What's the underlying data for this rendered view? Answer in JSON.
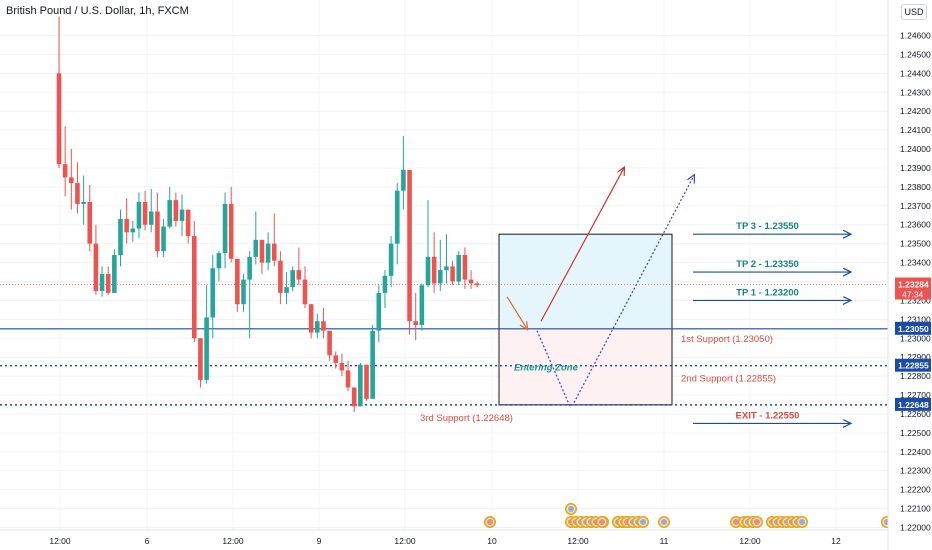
{
  "header": {
    "symbol": "British Pound / U.S. Dollar, 1h, FXCM",
    "currency": "USD"
  },
  "chart_data": {
    "type": "candlestick",
    "title": "British Pound / U.S. Dollar, 1h, FXCM",
    "ylim": [
      1.2197,
      1.2468
    ],
    "y_ticks": [
      "1.24600",
      "1.24500",
      "1.24400",
      "1.24300",
      "1.24200",
      "1.24100",
      "1.24000",
      "1.23900",
      "1.23800",
      "1.23700",
      "1.23600",
      "1.23500",
      "1.23400",
      "1.23300",
      "1.23200",
      "1.23100",
      "1.23000",
      "1.22900",
      "1.22800",
      "1.22700",
      "1.22600",
      "1.22500",
      "1.22400",
      "1.22300",
      "1.22200",
      "1.22100",
      "1.22000"
    ],
    "x_ticks": [
      "12:00",
      "6",
      "12:00",
      "9",
      "12:00",
      "10",
      "12:00",
      "11",
      "12:00",
      "12"
    ],
    "candles": [
      [
        1.244,
        1.247,
        1.239,
        1.2392
      ],
      [
        1.2392,
        1.2412,
        1.2375,
        1.2385
      ],
      [
        1.2385,
        1.24,
        1.2368,
        1.2382
      ],
      [
        1.2382,
        1.2393,
        1.2366,
        1.2371
      ],
      [
        1.2371,
        1.2386,
        1.236,
        1.2372
      ],
      [
        1.2372,
        1.2381,
        1.2346,
        1.235
      ],
      [
        1.235,
        1.236,
        1.2323,
        1.2325
      ],
      [
        1.2325,
        1.2338,
        1.2322,
        1.2334
      ],
      [
        1.2334,
        1.2338,
        1.2323,
        1.2324
      ],
      [
        1.2324,
        1.2347,
        1.2324,
        1.2344
      ],
      [
        1.2344,
        1.2368,
        1.2338,
        1.2363
      ],
      [
        1.2363,
        1.2374,
        1.235,
        1.2356
      ],
      [
        1.2356,
        1.2362,
        1.2351,
        1.2358
      ],
      [
        1.2358,
        1.2377,
        1.2353,
        1.2372
      ],
      [
        1.2372,
        1.2378,
        1.2357,
        1.236
      ],
      [
        1.236,
        1.2379,
        1.2356,
        1.2367
      ],
      [
        1.2367,
        1.2377,
        1.2343,
        1.2346
      ],
      [
        1.2346,
        1.2363,
        1.2343,
        1.2359
      ],
      [
        1.2359,
        1.238,
        1.2358,
        1.2373
      ],
      [
        1.2373,
        1.2377,
        1.2359,
        1.2362
      ],
      [
        1.2362,
        1.2376,
        1.2354,
        1.2368
      ],
      [
        1.2368,
        1.2368,
        1.235,
        1.2354
      ],
      [
        1.2354,
        1.2362,
        1.2298,
        1.23
      ],
      [
        1.23,
        1.23,
        1.2274,
        1.2278
      ],
      [
        1.2278,
        1.2328,
        1.2276,
        1.2311
      ],
      [
        1.2311,
        1.2344,
        1.23,
        1.2337
      ],
      [
        1.2337,
        1.2346,
        1.233,
        1.2345
      ],
      [
        1.2345,
        1.2377,
        1.2337,
        1.2371
      ],
      [
        1.2371,
        1.238,
        1.234,
        1.2342
      ],
      [
        1.2342,
        1.2342,
        1.2314,
        1.2318
      ],
      [
        1.2318,
        1.2334,
        1.2314,
        1.2331
      ],
      [
        1.2331,
        1.2346,
        1.23,
        1.2343
      ],
      [
        1.2343,
        1.2367,
        1.2339,
        1.2352
      ],
      [
        1.2352,
        1.2352,
        1.2334,
        1.234
      ],
      [
        1.234,
        1.2356,
        1.2336,
        1.235
      ],
      [
        1.235,
        1.2366,
        1.2338,
        1.2341
      ],
      [
        1.2341,
        1.2346,
        1.2318,
        1.2324
      ],
      [
        1.2324,
        1.2335,
        1.2318,
        1.2327
      ],
      [
        1.2327,
        1.2338,
        1.2325,
        1.2336
      ],
      [
        1.2336,
        1.2348,
        1.2328,
        1.2331
      ],
      [
        1.2331,
        1.2338,
        1.2316,
        1.2318
      ],
      [
        1.2318,
        1.2318,
        1.23,
        1.2303
      ],
      [
        1.2303,
        1.2313,
        1.23,
        1.2309
      ],
      [
        1.2309,
        1.2316,
        1.23,
        1.2304
      ],
      [
        1.2304,
        1.2304,
        1.2288,
        1.2291
      ],
      [
        1.2291,
        1.2293,
        1.2284,
        1.2287
      ],
      [
        1.2287,
        1.2292,
        1.228,
        1.2283
      ],
      [
        1.2283,
        1.2288,
        1.2272,
        1.2274
      ],
      [
        1.2274,
        1.2274,
        1.2261,
        1.2264
      ],
      [
        1.2264,
        1.2287,
        1.2264,
        1.2286
      ],
      [
        1.2286,
        1.2286,
        1.2267,
        1.2268
      ],
      [
        1.2268,
        1.2307,
        1.2268,
        1.2304
      ],
      [
        1.2304,
        1.2328,
        1.2298,
        1.2324
      ],
      [
        1.2324,
        1.2336,
        1.2316,
        1.2333
      ],
      [
        1.2333,
        1.2354,
        1.2327,
        1.235
      ],
      [
        1.235,
        1.2382,
        1.2339,
        1.2378
      ],
      [
        1.2378,
        1.2407,
        1.2368,
        1.2389
      ],
      [
        1.2389,
        1.2389,
        1.2302,
        1.2309
      ],
      [
        1.2309,
        1.2324,
        1.2299,
        1.2307
      ],
      [
        1.2307,
        1.2329,
        1.2304,
        1.2328
      ],
      [
        1.2328,
        1.2373,
        1.2327,
        1.2343
      ],
      [
        1.2343,
        1.2356,
        1.2324,
        1.2329
      ],
      [
        1.2329,
        1.2352,
        1.2325,
        1.2336
      ],
      [
        1.2336,
        1.2355,
        1.2329,
        1.2338
      ],
      [
        1.2338,
        1.2341,
        1.2328,
        1.233
      ],
      [
        1.233,
        1.2346,
        1.2328,
        1.2344
      ],
      [
        1.2344,
        1.2348,
        1.2326,
        1.2331
      ],
      [
        1.2331,
        1.2336,
        1.2326,
        1.2329
      ],
      [
        1.2329,
        1.233,
        1.2327,
        1.2328
      ]
    ],
    "levels": [
      {
        "name": "1st Support (1.23050)",
        "value": 1.2305,
        "style": "solid"
      },
      {
        "name": "2nd Support (1.22855)",
        "value": 1.22855,
        "style": "dotted"
      },
      {
        "name": "3rd Support (1.22648)",
        "value": 1.22648,
        "style": "dotted"
      }
    ],
    "current_price_line": 1.23284,
    "annotations": {
      "targets": [
        {
          "label": "TP 3 - 1.23550",
          "value": 1.2355
        },
        {
          "label": "TP 2 - 1.23350",
          "value": 1.2335
        },
        {
          "label": "TP 1 - 1.23200",
          "value": 1.232
        }
      ],
      "exit": {
        "label": "EXIT - 1.22550",
        "value": 1.2255
      },
      "zone_label": "Entering Zone",
      "support_labels": [
        "1st Support (1.23050)",
        "2nd Support (1.22855)",
        "3rd Support (1.22648)"
      ]
    },
    "price_labels": {
      "current": "1.23284",
      "countdown": "47:34",
      "s1": "1.23050",
      "s2": "1.22855",
      "s3": "1.22648"
    },
    "events_row1": [
      "us"
    ],
    "events_row2": [
      "uk",
      "uk",
      "uk",
      "us",
      "us",
      "us",
      "uk",
      "uk",
      "us",
      "us",
      "us"
    ],
    "events_row3": [
      "uk",
      "us",
      "uk",
      "uk",
      "us",
      "us",
      "us",
      "us",
      "uk",
      "us",
      "us",
      "us",
      "uk",
      "uk",
      "us",
      "uk",
      "us",
      "uk",
      "us",
      "us",
      "us"
    ],
    "colors": {
      "up": "#26a69a",
      "down": "#ef5350",
      "support": "#1b4ba8",
      "target": "#1b4ba8",
      "target_text": "#138585",
      "support_text": "#e04a3a",
      "zone_text": "#1b9a8a",
      "profit_zone": "#e4f6fb",
      "loss_zone": "#fdf1f1",
      "arrow_up": "#d3322f",
      "arrow_dotted": "#3a3fd0"
    }
  }
}
